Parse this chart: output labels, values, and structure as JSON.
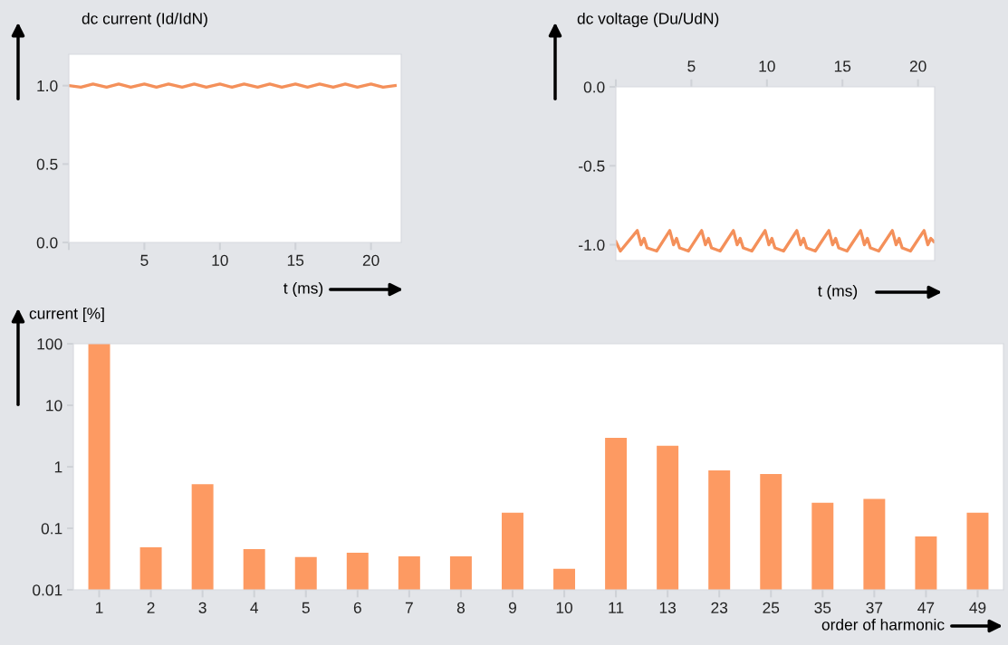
{
  "chart_data": [
    {
      "type": "line",
      "ylabel": "dc current (Id/IdN)",
      "xlabel": "t (ms)",
      "xlim": [
        0,
        22
      ],
      "ylim": [
        0,
        1.2
      ],
      "xticks": [
        {
          "value": 0,
          "label": null
        },
        5,
        10,
        15,
        20
      ],
      "yticks": [
        {
          "value": 0,
          "label": "0.0"
        },
        {
          "value": 0.5,
          "label": "0.5"
        },
        {
          "value": 1,
          "label": "1.0"
        }
      ],
      "grid": false,
      "legend": false,
      "marker": "none",
      "line_style": "solid",
      "series": [
        {
          "color": "#f4905a",
          "x": [
            0,
            0.8,
            1.6,
            2.5,
            3.3,
            4.1,
            5.0,
            5.8,
            6.6,
            7.5,
            8.3,
            9.1,
            10.0,
            10.8,
            11.6,
            12.5,
            13.3,
            14.1,
            15.0,
            15.8,
            16.6,
            17.5,
            18.3,
            19.1,
            20.0,
            20.8,
            21.6
          ],
          "values": [
            1.0,
            0.99,
            1.01,
            0.99,
            1.01,
            0.99,
            1.01,
            0.99,
            1.01,
            0.99,
            1.01,
            0.99,
            1.01,
            0.99,
            1.01,
            0.99,
            1.01,
            0.99,
            1.01,
            0.99,
            1.01,
            0.99,
            1.01,
            0.99,
            1.01,
            0.99,
            1.0
          ]
        }
      ]
    },
    {
      "type": "line",
      "ylabel": "dc voltage (Du/UdN)",
      "xlabel": "t (ms)",
      "xlim": [
        0,
        21.1
      ],
      "ylim": [
        -1.1,
        0
      ],
      "xticks": [
        {
          "value": 0,
          "label": null
        },
        5,
        10,
        15,
        20
      ],
      "yticks": [
        {
          "value": 0,
          "label": "0.0"
        },
        {
          "value": -0.5,
          "label": "-0.5"
        },
        {
          "value": -1,
          "label": "-1.0"
        }
      ],
      "grid": false,
      "legend": false,
      "marker": "none",
      "line_style": "solid",
      "series": [
        {
          "color": "#f4905a",
          "x": [
            0,
            0.3,
            1.42,
            1.67,
            1.87,
            2.07,
            2.7,
            3.57,
            3.82,
            4.02,
            4.22,
            4.8,
            5.68,
            5.93,
            6.13,
            6.33,
            6.9,
            7.78,
            8.03,
            8.23,
            8.43,
            9.0,
            9.88,
            10.13,
            10.33,
            10.53,
            11.1,
            11.98,
            12.23,
            12.43,
            12.63,
            13.2,
            14.1,
            14.35,
            14.55,
            14.75,
            15.3,
            16.2,
            16.45,
            16.65,
            16.85,
            17.4,
            18.3,
            18.55,
            18.75,
            18.95,
            19.5,
            20.4,
            20.65,
            20.85,
            21.05
          ],
          "values": [
            -0.98,
            -1.04,
            -0.91,
            -1.0,
            -0.96,
            -1.02,
            -1.04,
            -0.91,
            -1.0,
            -0.96,
            -1.02,
            -1.04,
            -0.91,
            -1.0,
            -0.96,
            -1.02,
            -1.04,
            -0.91,
            -1.0,
            -0.96,
            -1.02,
            -1.04,
            -0.91,
            -1.0,
            -0.96,
            -1.02,
            -1.04,
            -0.91,
            -1.0,
            -0.96,
            -1.02,
            -1.04,
            -0.91,
            -1.0,
            -0.96,
            -1.02,
            -1.04,
            -0.91,
            -1.0,
            -0.96,
            -1.02,
            -1.04,
            -0.91,
            -1.0,
            -0.96,
            -1.02,
            -1.04,
            -0.91,
            -1.0,
            -0.96,
            -0.98
          ]
        }
      ]
    },
    {
      "type": "bar",
      "ylabel": "current [%]",
      "xlabel": "order of harmonic",
      "log": true,
      "ylim": [
        0.01,
        100
      ],
      "yticks": [
        0.01,
        0.1,
        1,
        10,
        100
      ],
      "grid": false,
      "legend": false,
      "categories": [
        "1",
        "2",
        "3",
        "4",
        "5",
        "6",
        "7",
        "8",
        "9",
        "10",
        "11",
        "13",
        "23",
        "25",
        "35",
        "37",
        "47",
        "49"
      ],
      "color": "#fd9a62",
      "values": [
        100,
        0.049,
        0.52,
        0.046,
        0.034,
        0.04,
        0.035,
        0.035,
        0.18,
        0.022,
        2.95,
        2.2,
        0.87,
        0.76,
        0.26,
        0.3,
        0.074,
        0.18
      ]
    }
  ]
}
